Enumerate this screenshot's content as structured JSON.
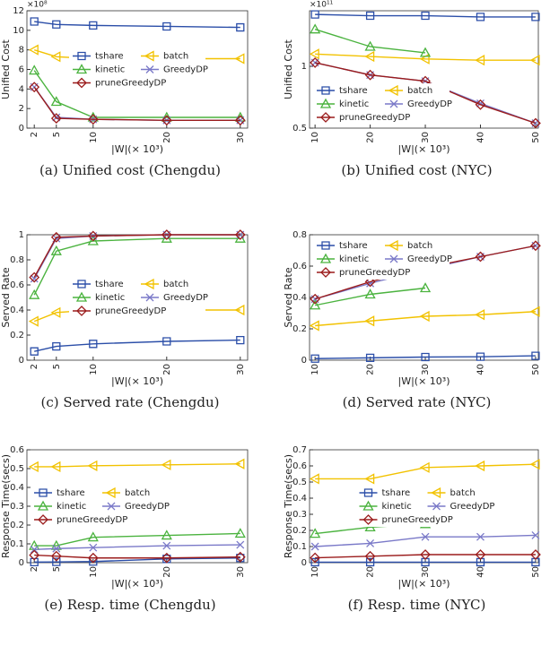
{
  "chart_data": [
    {
      "type": "line",
      "caption": "(a) Unified cost (Chengdu)",
      "ylabel": "Unified Cost",
      "xlabel": "|W|(× 10³)",
      "y_multiplier": "×10⁸",
      "x": [
        2,
        5,
        10,
        20,
        30
      ],
      "xlim": [
        1,
        31
      ],
      "xticks": [
        2,
        5,
        10,
        20,
        30
      ],
      "ylim": [
        0,
        12
      ],
      "yticks": [
        0,
        2,
        4,
        6,
        8,
        10,
        12
      ],
      "legend_loc": "center",
      "series": [
        {
          "name": "tshare",
          "color": "#2b4ea8",
          "marker": "square",
          "values": [
            10.9,
            10.6,
            10.5,
            10.4,
            10.3
          ]
        },
        {
          "name": "batch",
          "color": "#f2c200",
          "marker": "triangle-left",
          "values": [
            8.0,
            7.3,
            7.1,
            7.1,
            7.1
          ]
        },
        {
          "name": "kinetic",
          "color": "#4bb33f",
          "marker": "triangle-up",
          "values": [
            5.9,
            2.7,
            1.1,
            1.1,
            1.1
          ]
        },
        {
          "name": "GreedyDP",
          "color": "#7a79c8",
          "marker": "x",
          "values": [
            4.2,
            1.1,
            0.9,
            0.8,
            0.8
          ]
        },
        {
          "name": "pruneGreedyDP",
          "color": "#9b1c1c",
          "marker": "diamond",
          "values": [
            4.2,
            1.0,
            0.9,
            0.8,
            0.8
          ]
        }
      ]
    },
    {
      "type": "line",
      "caption": "(b) Unified cost (NYC)",
      "ylabel": "Unified Cost",
      "xlabel": "|W|(× 10³)",
      "y_multiplier": "×10¹¹",
      "x": [
        10,
        20,
        30,
        40,
        50
      ],
      "xlim": [
        9,
        50.5
      ],
      "xticks": [
        10,
        20,
        30,
        40,
        50
      ],
      "ylim": [
        0.5,
        1.45
      ],
      "yticks": [
        0.5,
        1
      ],
      "legend_loc": "lower left",
      "series": [
        {
          "name": "tshare",
          "color": "#2b4ea8",
          "marker": "square",
          "values": [
            1.42,
            1.41,
            1.41,
            1.4,
            1.4
          ]
        },
        {
          "name": "batch",
          "color": "#f2c200",
          "marker": "triangle-left",
          "values": [
            1.1,
            1.08,
            1.06,
            1.05,
            1.05
          ]
        },
        {
          "name": "kinetic",
          "color": "#4bb33f",
          "marker": "triangle-up",
          "values": [
            1.3,
            1.16,
            1.11,
            null,
            null
          ]
        },
        {
          "name": "GreedyDP",
          "color": "#7a79c8",
          "marker": "x",
          "values": [
            1.03,
            0.93,
            0.88,
            0.7,
            0.54
          ]
        },
        {
          "name": "pruneGreedyDP",
          "color": "#9b1c1c",
          "marker": "diamond",
          "values": [
            1.03,
            0.93,
            0.88,
            0.69,
            0.54
          ]
        }
      ]
    },
    {
      "type": "line",
      "caption": "(c) Served rate (Chengdu)",
      "ylabel": "Served Rate",
      "xlabel": "|W|(× 10³)",
      "x": [
        2,
        5,
        10,
        20,
        30
      ],
      "xlim": [
        1,
        31
      ],
      "xticks": [
        2,
        5,
        10,
        20,
        30
      ],
      "ylim": [
        0,
        1
      ],
      "yticks": [
        0,
        0.2,
        0.4,
        0.6,
        0.8,
        1
      ],
      "legend_loc": "center",
      "series": [
        {
          "name": "tshare",
          "color": "#2b4ea8",
          "marker": "square",
          "values": [
            0.07,
            0.11,
            0.13,
            0.15,
            0.16
          ]
        },
        {
          "name": "batch",
          "color": "#f2c200",
          "marker": "triangle-left",
          "values": [
            0.31,
            0.38,
            0.4,
            0.4,
            0.4
          ]
        },
        {
          "name": "kinetic",
          "color": "#4bb33f",
          "marker": "triangle-up",
          "values": [
            0.52,
            0.87,
            0.95,
            0.97,
            0.97
          ]
        },
        {
          "name": "GreedyDP",
          "color": "#7a79c8",
          "marker": "x",
          "values": [
            0.65,
            0.97,
            0.99,
            1.0,
            1.0
          ]
        },
        {
          "name": "pruneGreedyDP",
          "color": "#9b1c1c",
          "marker": "diamond",
          "values": [
            0.66,
            0.98,
            0.99,
            1.0,
            1.0
          ]
        }
      ]
    },
    {
      "type": "line",
      "caption": "(d) Served rate (NYC)",
      "ylabel": "Served Rate",
      "xlabel": "|W|(× 10³)",
      "x": [
        10,
        20,
        30,
        40,
        50
      ],
      "xlim": [
        9,
        50.5
      ],
      "xticks": [
        10,
        20,
        30,
        40,
        50
      ],
      "ylim": [
        0,
        0.8
      ],
      "yticks": [
        0,
        0.2,
        0.4,
        0.6,
        0.8
      ],
      "legend_loc": "upper left",
      "series": [
        {
          "name": "tshare",
          "color": "#2b4ea8",
          "marker": "square",
          "values": [
            0.01,
            0.015,
            0.02,
            0.022,
            0.028
          ]
        },
        {
          "name": "batch",
          "color": "#f2c200",
          "marker": "triangle-left",
          "values": [
            0.22,
            0.25,
            0.28,
            0.29,
            0.31
          ]
        },
        {
          "name": "kinetic",
          "color": "#4bb33f",
          "marker": "triangle-up",
          "values": [
            0.35,
            0.42,
            0.46,
            null,
            null
          ]
        },
        {
          "name": "GreedyDP",
          "color": "#7a79c8",
          "marker": "x",
          "values": [
            0.39,
            0.49,
            0.58,
            0.66,
            0.73
          ]
        },
        {
          "name": "pruneGreedyDP",
          "color": "#9b1c1c",
          "marker": "diamond",
          "values": [
            0.39,
            0.5,
            0.59,
            0.66,
            0.73
          ]
        }
      ]
    },
    {
      "type": "line",
      "caption": "(e) Resp. time (Chengdu)",
      "ylabel": "Response Time(secs)",
      "xlabel": "|W|(× 10³)",
      "x": [
        2,
        5,
        10,
        20,
        30
      ],
      "xlim": [
        1,
        31
      ],
      "xticks": [
        2,
        5,
        10,
        20,
        30
      ],
      "ylim": [
        0,
        0.6
      ],
      "yticks": [
        0,
        0.1,
        0.2,
        0.3,
        0.4,
        0.5,
        0.6
      ],
      "legend_loc": "center left",
      "series": [
        {
          "name": "tshare",
          "color": "#2b4ea8",
          "marker": "square",
          "values": [
            0.003,
            0.004,
            0.006,
            0.02,
            0.025
          ]
        },
        {
          "name": "batch",
          "color": "#f2c200",
          "marker": "triangle-left",
          "values": [
            0.51,
            0.51,
            0.515,
            0.52,
            0.525
          ]
        },
        {
          "name": "kinetic",
          "color": "#4bb33f",
          "marker": "triangle-up",
          "values": [
            0.09,
            0.09,
            0.135,
            0.145,
            0.155
          ]
        },
        {
          "name": "GreedyDP",
          "color": "#7a79c8",
          "marker": "x",
          "values": [
            0.07,
            0.075,
            0.08,
            0.09,
            0.095
          ]
        },
        {
          "name": "pruneGreedyDP",
          "color": "#9b1c1c",
          "marker": "diamond",
          "values": [
            0.04,
            0.035,
            0.025,
            0.025,
            0.03
          ]
        }
      ]
    },
    {
      "type": "line",
      "caption": "(f) Resp. time (NYC)",
      "ylabel": "Response Time(secs)",
      "xlabel": "|W|(× 10³)",
      "x": [
        10,
        20,
        30,
        40,
        50
      ],
      "xlim": [
        9,
        50.5
      ],
      "xticks": [
        10,
        20,
        30,
        40,
        50
      ],
      "ylim": [
        0,
        0.7
      ],
      "yticks": [
        0,
        0.1,
        0.2,
        0.3,
        0.4,
        0.5,
        0.6,
        0.7
      ],
      "legend_loc": "center",
      "series": [
        {
          "name": "tshare",
          "color": "#2b4ea8",
          "marker": "square",
          "values": [
            0.003,
            0.003,
            0.003,
            0.003,
            0.003
          ]
        },
        {
          "name": "batch",
          "color": "#f2c200",
          "marker": "triangle-left",
          "values": [
            0.52,
            0.52,
            0.59,
            0.6,
            0.61
          ]
        },
        {
          "name": "kinetic",
          "color": "#4bb33f",
          "marker": "triangle-up",
          "values": [
            0.18,
            0.22,
            0.24,
            null,
            null
          ]
        },
        {
          "name": "GreedyDP",
          "color": "#7a79c8",
          "marker": "x",
          "values": [
            0.1,
            0.12,
            0.16,
            0.16,
            0.17
          ]
        },
        {
          "name": "pruneGreedyDP",
          "color": "#9b1c1c",
          "marker": "diamond",
          "values": [
            0.03,
            0.04,
            0.05,
            0.05,
            0.05
          ]
        }
      ]
    }
  ]
}
